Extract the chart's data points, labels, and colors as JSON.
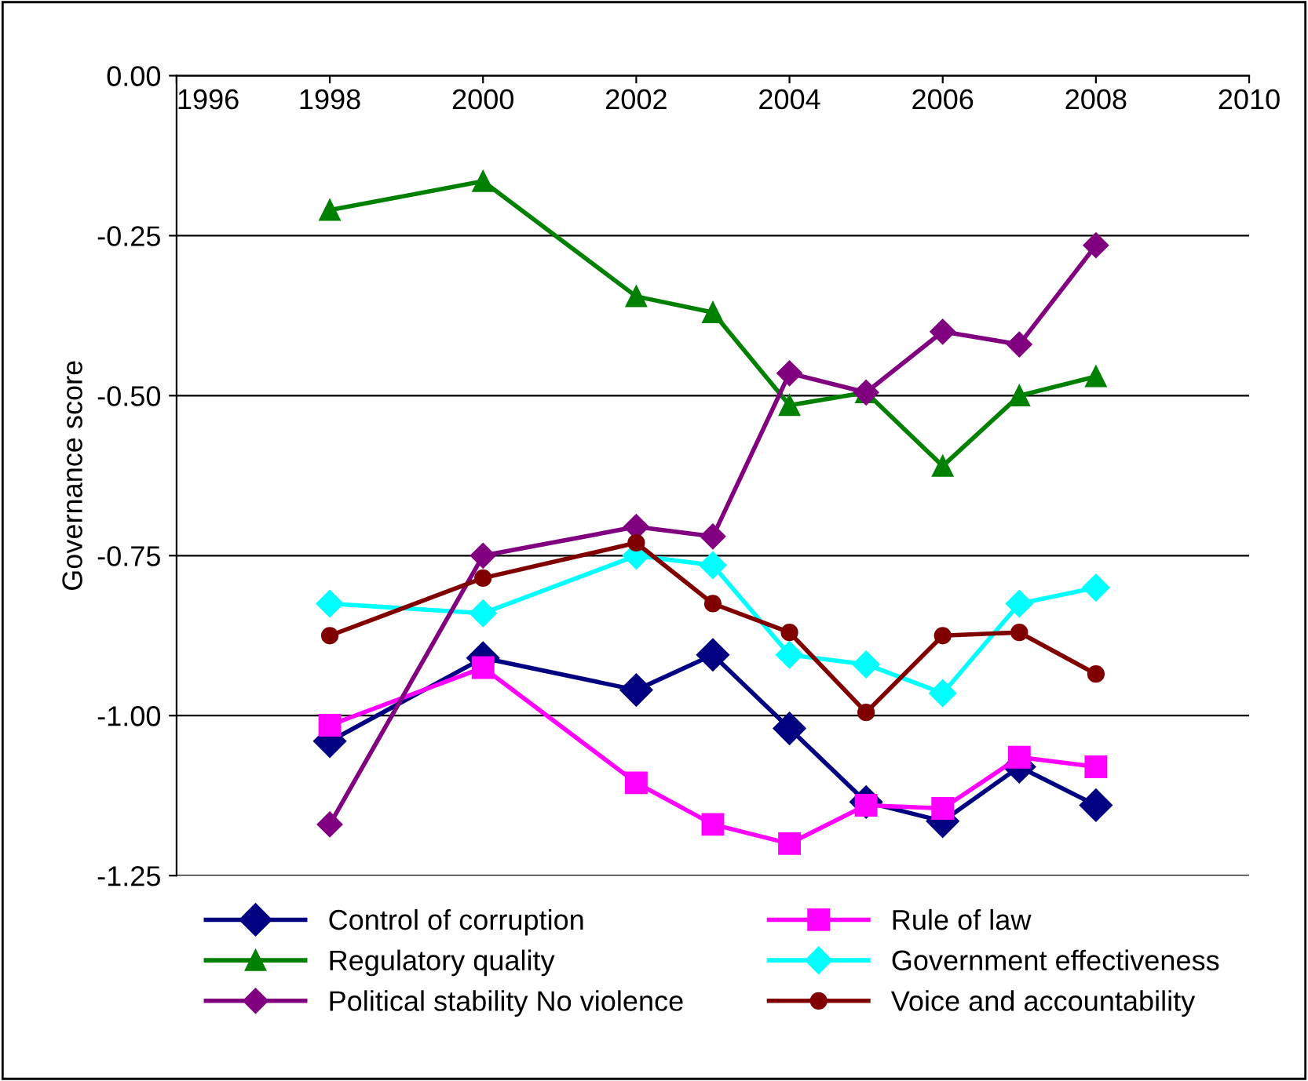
{
  "chart_data": {
    "type": "line",
    "ylabel": "Governance score",
    "x": [
      1998,
      2000,
      2002,
      2003,
      2004,
      2005,
      2006,
      2007,
      2008
    ],
    "xlim": [
      1996,
      2010
    ],
    "xticks": [
      1996,
      1998,
      2000,
      2002,
      2004,
      2006,
      2008,
      2010
    ],
    "ylim": [
      -1.25,
      0
    ],
    "yticks": [
      {
        "value": -1.25,
        "label": "-1.25"
      },
      {
        "value": -1.0,
        "label": "-1.00"
      },
      {
        "value": -0.75,
        "label": "-0.75"
      },
      {
        "value": -0.5,
        "label": "-0.50"
      },
      {
        "value": -0.25,
        "label": "-0.25"
      },
      {
        "value": 0,
        "label": "0.00"
      }
    ],
    "grid": "y",
    "legend": "bottom",
    "line_style": "solid",
    "series": [
      {
        "name": "Control of corruption",
        "color": "#000080",
        "marker": "diamond",
        "values": [
          -1.04,
          -0.91,
          -0.96,
          -0.905,
          -1.02,
          -1.135,
          -1.165,
          -1.08,
          -1.14
        ]
      },
      {
        "name": "Rule of law",
        "color": "#ff00ff",
        "marker": "square",
        "values": [
          -1.015,
          -0.925,
          -1.105,
          -1.17,
          -1.2,
          -1.14,
          -1.145,
          -1.065,
          -1.08
        ]
      },
      {
        "name": "Regulatory quality",
        "color": "#008000",
        "marker": "triangle",
        "values": [
          -0.21,
          -0.165,
          -0.345,
          -0.37,
          -0.515,
          -0.495,
          -0.61,
          -0.5,
          -0.47
        ]
      },
      {
        "name": "Government effectiveness",
        "color": "#00ffff",
        "marker": "diamond",
        "values": [
          -0.825,
          -0.84,
          -0.75,
          -0.765,
          -0.905,
          -0.92,
          -0.965,
          -0.825,
          -0.8
        ]
      },
      {
        "name": "Political stability No violence",
        "color": "#800080",
        "marker": "diamond",
        "values": [
          -1.17,
          -0.75,
          -0.705,
          -0.72,
          -0.465,
          -0.495,
          -0.4,
          -0.42,
          -0.265
        ]
      },
      {
        "name": "Voice and accountability",
        "color": "#800000",
        "marker": "circle",
        "values": [
          -0.875,
          -0.785,
          -0.73,
          -0.825,
          -0.87,
          -0.995,
          -0.875,
          -0.87,
          -0.935
        ]
      }
    ]
  }
}
